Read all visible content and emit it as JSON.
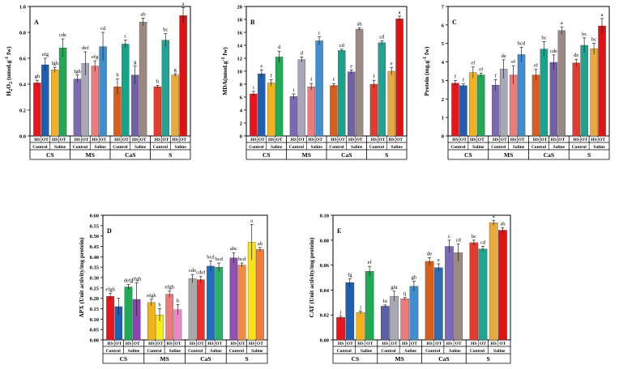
{
  "figure": {
    "categories": [
      "CS",
      "MS",
      "CaS",
      "S"
    ],
    "subgroups": [
      "Control",
      "Saline"
    ],
    "treatments": [
      "HS",
      "OT"
    ]
  },
  "chart_data": [
    {
      "type": "bar",
      "panel": "A",
      "ylabel": "H2O2(umol.g-1 fw)",
      "ylabel_parts": {
        "a": "H",
        "s1": "2",
        "b": "O",
        "s2": "2",
        "c": " (umol.g",
        "s3": "-1",
        "d": " fw)"
      },
      "ylim": [
        0,
        1.0
      ],
      "yticks": [
        "0.0",
        "0.2",
        "0.4",
        "0.6",
        "0.8",
        "1.0"
      ],
      "colors": [
        "#e8151c",
        "#1f5fb0",
        "#f2b21b",
        "#22a955",
        "#7b6ab3",
        "#a9a6b7",
        "#ee7b7b",
        "#3f8ed0",
        "#d95e1b",
        "#18a48b",
        "#7260a6",
        "#9b8a82",
        "#e33c2e",
        "#23a191",
        "#e8a93d",
        "#de1414"
      ],
      "values": [
        0.41,
        0.55,
        0.51,
        0.68,
        0.44,
        0.56,
        0.54,
        0.69,
        0.38,
        0.71,
        0.47,
        0.88,
        0.38,
        0.74,
        0.47,
        0.93
      ],
      "errors": [
        0.02,
        0.05,
        0.02,
        0.07,
        0.03,
        0.09,
        0.04,
        0.11,
        0.06,
        0.03,
        0.07,
        0.03,
        0.01,
        0.05,
        0.01,
        0.06
      ],
      "labels": [
        "gh",
        "efg",
        "fgh",
        "cde",
        "fgh",
        "def",
        "efg",
        "cd",
        "h",
        "c",
        "g",
        "ab",
        "h",
        "bc",
        "g",
        "a"
      ]
    },
    {
      "type": "bar",
      "panel": "B",
      "ylabel": "MDA(nmol.g-1 fw)",
      "ylabel_parts": {
        "a": "MDA(nmol.g",
        "s1": "-1",
        "b": " fw)"
      },
      "ylim": [
        0,
        20
      ],
      "yticks": [
        "0",
        "2",
        "4",
        "6",
        "8",
        "10",
        "12",
        "14",
        "16",
        "18",
        "20"
      ],
      "colors": [
        "#e8151c",
        "#1f5fb0",
        "#f2b21b",
        "#22a955",
        "#7b6ab3",
        "#a9a6b7",
        "#ee7b7b",
        "#3f8ed0",
        "#d95e1b",
        "#18a48b",
        "#7260a6",
        "#9b8a82",
        "#e33c2e",
        "#23a191",
        "#e8a93d",
        "#de1414"
      ],
      "values": [
        6.5,
        9.6,
        8.2,
        12.2,
        6.1,
        11.8,
        7.6,
        14.7,
        7.8,
        13.2,
        9.9,
        16.5,
        8.0,
        14.4,
        10.0,
        18.1
      ],
      "errors": [
        0.4,
        0.6,
        0.5,
        0.9,
        0.4,
        0.4,
        0.5,
        0.6,
        0.3,
        0.2,
        0.3,
        0.2,
        0.6,
        0.3,
        0.6,
        0.4
      ],
      "labels": [
        "i",
        "e",
        "f",
        "d",
        "i",
        "d",
        "f",
        "c",
        "f",
        "cd",
        "e",
        "ab",
        "f",
        "cd",
        "e",
        "a"
      ]
    },
    {
      "type": "bar",
      "panel": "C",
      "ylabel": "Protein (mg.g-1 fw)",
      "ylabel_parts": {
        "a": "Protein (mg.g",
        "s1": "-1",
        "b": " fw)"
      },
      "ylim": [
        0,
        7
      ],
      "yticks": [
        "0",
        "1",
        "2",
        "3",
        "4",
        "5",
        "6",
        "7"
      ],
      "colors": [
        "#e8151c",
        "#1f5fb0",
        "#f2b21b",
        "#22a955",
        "#7b6ab3",
        "#a9a6b7",
        "#ee7b7b",
        "#3f8ed0",
        "#d95e1b",
        "#18a48b",
        "#7260a6",
        "#9b8a82",
        "#e33c2e",
        "#23a191",
        "#e8a93d",
        "#de1414"
      ],
      "values": [
        2.85,
        2.72,
        3.43,
        3.3,
        2.75,
        3.62,
        3.3,
        4.4,
        3.3,
        4.7,
        3.98,
        5.7,
        3.95,
        4.9,
        4.72,
        5.95
      ],
      "errors": [
        0.15,
        0.1,
        0.3,
        0.1,
        0.3,
        0.5,
        0.5,
        0.4,
        0.3,
        0.4,
        0.4,
        0.2,
        0.2,
        0.4,
        0.3,
        0.4
      ],
      "labels": [
        "f",
        "f",
        "ef",
        "ef",
        "f",
        "de",
        "ef",
        "bcd",
        "ef",
        "bc",
        "cde",
        "a",
        "de",
        "bc",
        "bc",
        "a"
      ]
    },
    {
      "type": "bar",
      "panel": "D",
      "ylabel": "APX (Unit activity/mg protein)",
      "ylim": [
        0,
        0.6
      ],
      "yticks": [
        "0.00",
        "0.05",
        "0.10",
        "0.15",
        "0.20",
        "0.25",
        "0.30",
        "0.35",
        "0.40",
        "0.45",
        "0.50",
        "0.55",
        "0.60"
      ],
      "colors": [
        "#e8151c",
        "#1f5fb0",
        "#22a955",
        "#8e44b0",
        "#f2b21b",
        "#f8eb1a",
        "#ee7b7b",
        "#ec86c6",
        "#a9a9a9",
        "#f03030",
        "#1f6fc0",
        "#2bb06a",
        "#8e52b3",
        "#ee8c45",
        "#f7e11a",
        "#f07e3a"
      ],
      "values": [
        0.21,
        0.16,
        0.255,
        0.195,
        0.18,
        0.12,
        0.22,
        0.145,
        0.295,
        0.29,
        0.355,
        0.35,
        0.395,
        0.36,
        0.47,
        0.435
      ],
      "errors": [
        0.015,
        0.04,
        0.012,
        0.08,
        0.015,
        0.03,
        0.015,
        0.025,
        0.02,
        0.015,
        0.025,
        0.02,
        0.025,
        0.01,
        0.085,
        0.01
      ],
      "labels": [
        "efgh",
        "",
        "defg",
        "efgh",
        "efgh",
        "h",
        "efgh",
        "h",
        "cde",
        "cdef",
        "bcd",
        "bcd",
        "abc",
        "bcd",
        "a",
        "ab"
      ]
    },
    {
      "type": "bar",
      "panel": "E",
      "ylabel": "CAT (Unit activity/mg protein)",
      "ylim": [
        0,
        0.1
      ],
      "yticks": [
        "0.00",
        "0.02",
        "0.04",
        "0.06",
        "0.08",
        "0.10"
      ],
      "colors": [
        "#e8151c",
        "#1f5fb0",
        "#f2b21b",
        "#22a955",
        "#5b5fa8",
        "#a9a9b5",
        "#ee7b7b",
        "#3f8ed0",
        "#d95e1b",
        "#2f6db3",
        "#7a68b8",
        "#9b8a82",
        "#e33c2e",
        "#23a191",
        "#e8a93d",
        "#de1414"
      ],
      "values": [
        0.018,
        0.046,
        0.022,
        0.055,
        0.027,
        0.035,
        0.033,
        0.043,
        0.063,
        0.058,
        0.075,
        0.07,
        0.078,
        0.073,
        0.094,
        0.088
      ],
      "errors": [
        0.001,
        0.003,
        0.001,
        0.004,
        0.001,
        0.004,
        0.001,
        0.004,
        0.003,
        0.003,
        0.005,
        0.007,
        0.002,
        0.002,
        0.002,
        0.002
      ],
      "labels": [
        "j",
        "fg",
        "j",
        "ef",
        "hi",
        "ghi",
        "ij",
        "gh",
        "de",
        "e",
        "c",
        "cd",
        "bc",
        "cd",
        "a",
        "ab"
      ]
    }
  ]
}
